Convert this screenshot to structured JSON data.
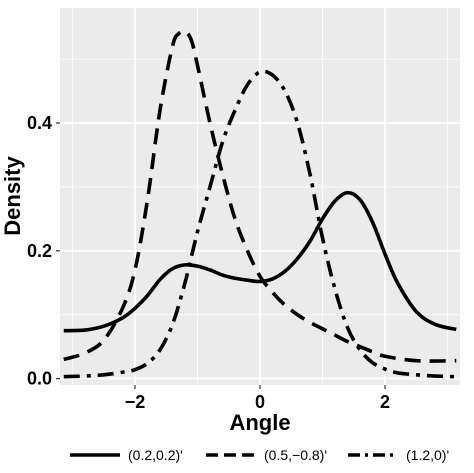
{
  "chart_data": {
    "type": "line",
    "title": "",
    "xlabel": "Angle",
    "ylabel": "Density",
    "xlim": [
      -3.2,
      3.2
    ],
    "ylim": [
      -0.01,
      0.58
    ],
    "x_ticks": [
      -2,
      0,
      2
    ],
    "x_tick_labels": [
      "−2",
      "0",
      "2"
    ],
    "y_ticks": [
      0.0,
      0.2,
      0.4
    ],
    "y_tick_labels": [
      "0.0",
      "0.2",
      "0.4"
    ],
    "grid": true,
    "background": "#ebebeb",
    "grid_color": "#ffffff",
    "legend_position": "bottom",
    "series": [
      {
        "name": "(0.2,0.2)'",
        "dash": "solid",
        "color": "#000000",
        "x": [
          -3.14,
          -2.8,
          -2.5,
          -2.2,
          -2.0,
          -1.8,
          -1.6,
          -1.4,
          -1.2,
          -1.0,
          -0.8,
          -0.6,
          -0.4,
          -0.2,
          0.0,
          0.2,
          0.4,
          0.6,
          0.8,
          1.0,
          1.2,
          1.4,
          1.6,
          1.8,
          2.0,
          2.2,
          2.5,
          2.8,
          3.14
        ],
        "y": [
          0.075,
          0.076,
          0.082,
          0.095,
          0.11,
          0.13,
          0.155,
          0.172,
          0.178,
          0.176,
          0.17,
          0.162,
          0.157,
          0.154,
          0.152,
          0.156,
          0.168,
          0.188,
          0.215,
          0.25,
          0.278,
          0.291,
          0.28,
          0.245,
          0.195,
          0.15,
          0.105,
          0.085,
          0.077
        ]
      },
      {
        "name": "(0.5,−0.8)'",
        "dash": "dashed",
        "color": "#000000",
        "x": [
          -3.14,
          -2.8,
          -2.5,
          -2.2,
          -2.0,
          -1.8,
          -1.6,
          -1.4,
          -1.3,
          -1.2,
          -1.1,
          -1.0,
          -0.8,
          -0.6,
          -0.4,
          -0.2,
          0.0,
          0.2,
          0.4,
          0.6,
          0.8,
          1.0,
          1.2,
          1.4,
          1.6,
          1.8,
          2.0,
          2.5,
          3.14
        ],
        "y": [
          0.03,
          0.04,
          0.06,
          0.11,
          0.17,
          0.28,
          0.42,
          0.52,
          0.54,
          0.543,
          0.53,
          0.49,
          0.4,
          0.32,
          0.25,
          0.2,
          0.16,
          0.135,
          0.115,
          0.1,
          0.088,
          0.078,
          0.068,
          0.058,
          0.05,
          0.042,
          0.035,
          0.028,
          0.028
        ]
      },
      {
        "name": "(1.2,0)'",
        "dash": "dashdot",
        "color": "#000000",
        "x": [
          -3.14,
          -2.8,
          -2.5,
          -2.2,
          -2.0,
          -1.8,
          -1.6,
          -1.4,
          -1.2,
          -1.0,
          -0.8,
          -0.6,
          -0.4,
          -0.2,
          0.0,
          0.2,
          0.4,
          0.6,
          0.8,
          1.0,
          1.2,
          1.4,
          1.6,
          1.8,
          2.0,
          2.2,
          2.5,
          2.8,
          3.14
        ],
        "y": [
          0.003,
          0.004,
          0.006,
          0.01,
          0.014,
          0.024,
          0.045,
          0.085,
          0.15,
          0.23,
          0.3,
          0.37,
          0.42,
          0.46,
          0.48,
          0.475,
          0.45,
          0.4,
          0.32,
          0.22,
          0.14,
          0.08,
          0.045,
          0.025,
          0.015,
          0.009,
          0.006,
          0.004,
          0.003
        ]
      }
    ]
  }
}
